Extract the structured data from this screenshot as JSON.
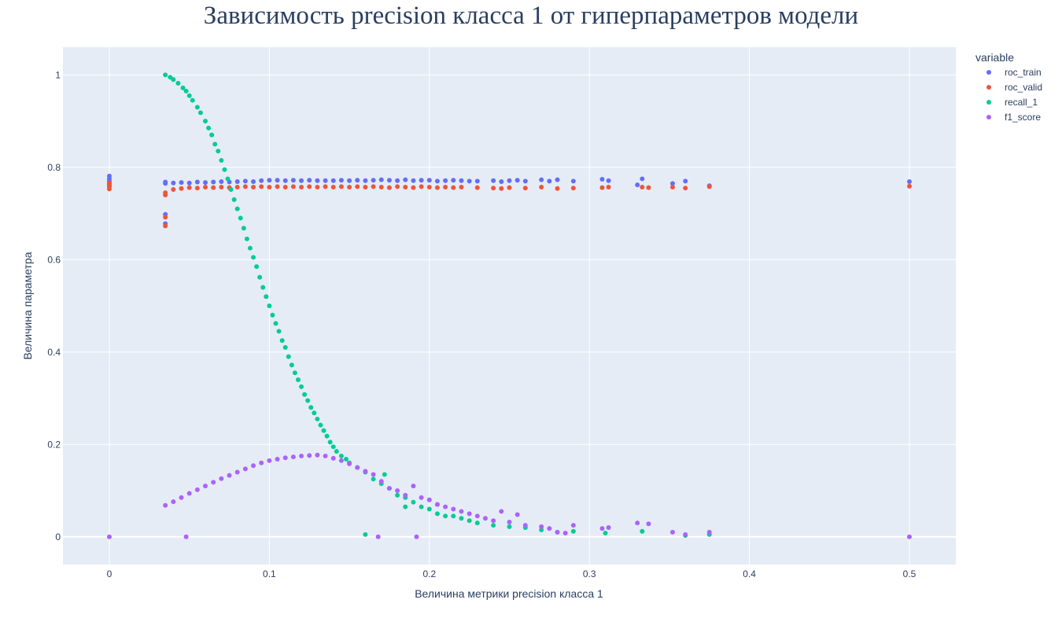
{
  "chart_data": {
    "type": "scatter",
    "title": "Зависимость precision класса 1 от гиперпараметров модели",
    "xlabel": "Величина метрики precision класса 1",
    "ylabel": "Величина параметра",
    "xlim": [
      -0.029,
      0.529
    ],
    "ylim": [
      -0.06,
      1.06
    ],
    "x_ticks": [
      0,
      0.1,
      0.2,
      0.3,
      0.4,
      0.5
    ],
    "x_tick_labels": [
      "0",
      "0.1",
      "0.2",
      "0.3",
      "0.4",
      "0.5"
    ],
    "y_ticks": [
      0,
      0.2,
      0.4,
      0.6,
      0.8,
      1
    ],
    "y_tick_labels": [
      "0",
      "0.2",
      "0.4",
      "0.6",
      "0.8",
      "1"
    ],
    "grid": true,
    "legend": {
      "title": "variable",
      "position": "top-right"
    },
    "series": [
      {
        "name": "roc_train",
        "color": "#636efa",
        "points": [
          [
            0,
            0.781
          ],
          [
            0,
            0.775
          ],
          [
            0,
            0.77
          ],
          [
            0,
            0.765
          ],
          [
            0,
            0.76
          ],
          [
            0.035,
            0.698
          ],
          [
            0.035,
            0.678
          ],
          [
            0.035,
            0.765
          ],
          [
            0.035,
            0.768
          ],
          [
            0.04,
            0.766
          ],
          [
            0.045,
            0.767
          ],
          [
            0.05,
            0.766
          ],
          [
            0.055,
            0.768
          ],
          [
            0.06,
            0.767
          ],
          [
            0.065,
            0.768
          ],
          [
            0.07,
            0.769
          ],
          [
            0.075,
            0.768
          ],
          [
            0.08,
            0.769
          ],
          [
            0.085,
            0.77
          ],
          [
            0.09,
            0.769
          ],
          [
            0.095,
            0.771
          ],
          [
            0.1,
            0.772
          ],
          [
            0.105,
            0.772
          ],
          [
            0.11,
            0.771
          ],
          [
            0.115,
            0.772
          ],
          [
            0.12,
            0.771
          ],
          [
            0.125,
            0.772
          ],
          [
            0.13,
            0.771
          ],
          [
            0.135,
            0.771
          ],
          [
            0.14,
            0.771
          ],
          [
            0.145,
            0.772
          ],
          [
            0.15,
            0.771
          ],
          [
            0.155,
            0.772
          ],
          [
            0.16,
            0.771
          ],
          [
            0.165,
            0.772
          ],
          [
            0.17,
            0.773
          ],
          [
            0.175,
            0.772
          ],
          [
            0.18,
            0.771
          ],
          [
            0.185,
            0.773
          ],
          [
            0.19,
            0.771
          ],
          [
            0.195,
            0.772
          ],
          [
            0.2,
            0.772
          ],
          [
            0.205,
            0.77
          ],
          [
            0.21,
            0.771
          ],
          [
            0.215,
            0.772
          ],
          [
            0.22,
            0.771
          ],
          [
            0.225,
            0.77
          ],
          [
            0.23,
            0.77
          ],
          [
            0.24,
            0.771
          ],
          [
            0.245,
            0.769
          ],
          [
            0.25,
            0.771
          ],
          [
            0.255,
            0.772
          ],
          [
            0.26,
            0.77
          ],
          [
            0.27,
            0.773
          ],
          [
            0.275,
            0.77
          ],
          [
            0.28,
            0.773
          ],
          [
            0.29,
            0.77
          ],
          [
            0.308,
            0.774
          ],
          [
            0.312,
            0.771
          ],
          [
            0.33,
            0.762
          ],
          [
            0.333,
            0.775
          ],
          [
            0.352,
            0.765
          ],
          [
            0.36,
            0.77
          ],
          [
            0.375,
            0.76
          ],
          [
            0.5,
            0.769
          ]
        ]
      },
      {
        "name": "roc_valid",
        "color": "#ef553b",
        "points": [
          [
            0,
            0.753
          ],
          [
            0,
            0.758
          ],
          [
            0,
            0.762
          ],
          [
            0,
            0.766
          ],
          [
            0.035,
            0.74
          ],
          [
            0.035,
            0.745
          ],
          [
            0.035,
            0.692
          ],
          [
            0.035,
            0.673
          ],
          [
            0.04,
            0.752
          ],
          [
            0.045,
            0.754
          ],
          [
            0.05,
            0.756
          ],
          [
            0.055,
            0.755
          ],
          [
            0.06,
            0.757
          ],
          [
            0.065,
            0.756
          ],
          [
            0.07,
            0.757
          ],
          [
            0.075,
            0.756
          ],
          [
            0.08,
            0.757
          ],
          [
            0.085,
            0.758
          ],
          [
            0.09,
            0.757
          ],
          [
            0.095,
            0.758
          ],
          [
            0.1,
            0.757
          ],
          [
            0.105,
            0.758
          ],
          [
            0.11,
            0.757
          ],
          [
            0.115,
            0.758
          ],
          [
            0.12,
            0.757
          ],
          [
            0.125,
            0.758
          ],
          [
            0.13,
            0.757
          ],
          [
            0.135,
            0.758
          ],
          [
            0.14,
            0.757
          ],
          [
            0.145,
            0.758
          ],
          [
            0.15,
            0.757
          ],
          [
            0.155,
            0.758
          ],
          [
            0.16,
            0.757
          ],
          [
            0.165,
            0.758
          ],
          [
            0.17,
            0.757
          ],
          [
            0.175,
            0.756
          ],
          [
            0.18,
            0.758
          ],
          [
            0.185,
            0.757
          ],
          [
            0.19,
            0.756
          ],
          [
            0.195,
            0.758
          ],
          [
            0.2,
            0.757
          ],
          [
            0.205,
            0.756
          ],
          [
            0.21,
            0.757
          ],
          [
            0.215,
            0.756
          ],
          [
            0.22,
            0.757
          ],
          [
            0.23,
            0.756
          ],
          [
            0.24,
            0.755
          ],
          [
            0.245,
            0.754
          ],
          [
            0.25,
            0.756
          ],
          [
            0.26,
            0.755
          ],
          [
            0.27,
            0.757
          ],
          [
            0.28,
            0.754
          ],
          [
            0.29,
            0.755
          ],
          [
            0.308,
            0.756
          ],
          [
            0.312,
            0.757
          ],
          [
            0.333,
            0.757
          ],
          [
            0.337,
            0.756
          ],
          [
            0.352,
            0.757
          ],
          [
            0.36,
            0.755
          ],
          [
            0.375,
            0.758
          ],
          [
            0.5,
            0.759
          ]
        ]
      },
      {
        "name": "recall_1",
        "color": "#00cc96",
        "points": [
          [
            0.035,
            1.0
          ],
          [
            0.038,
            0.995
          ],
          [
            0.04,
            0.99
          ],
          [
            0.043,
            0.982
          ],
          [
            0.046,
            0.972
          ],
          [
            0.048,
            0.965
          ],
          [
            0.05,
            0.955
          ],
          [
            0.052,
            0.945
          ],
          [
            0.055,
            0.93
          ],
          [
            0.057,
            0.918
          ],
          [
            0.06,
            0.9
          ],
          [
            0.062,
            0.885
          ],
          [
            0.064,
            0.87
          ],
          [
            0.066,
            0.85
          ],
          [
            0.068,
            0.835
          ],
          [
            0.07,
            0.815
          ],
          [
            0.072,
            0.795
          ],
          [
            0.074,
            0.775
          ],
          [
            0.076,
            0.752
          ],
          [
            0.078,
            0.73
          ],
          [
            0.08,
            0.71
          ],
          [
            0.082,
            0.69
          ],
          [
            0.084,
            0.668
          ],
          [
            0.086,
            0.645
          ],
          [
            0.088,
            0.625
          ],
          [
            0.09,
            0.605
          ],
          [
            0.092,
            0.585
          ],
          [
            0.094,
            0.562
          ],
          [
            0.096,
            0.54
          ],
          [
            0.098,
            0.52
          ],
          [
            0.1,
            0.5
          ],
          [
            0.102,
            0.48
          ],
          [
            0.104,
            0.462
          ],
          [
            0.106,
            0.445
          ],
          [
            0.108,
            0.425
          ],
          [
            0.11,
            0.41
          ],
          [
            0.112,
            0.39
          ],
          [
            0.114,
            0.372
          ],
          [
            0.116,
            0.355
          ],
          [
            0.118,
            0.34
          ],
          [
            0.12,
            0.325
          ],
          [
            0.122,
            0.308
          ],
          [
            0.124,
            0.295
          ],
          [
            0.126,
            0.28
          ],
          [
            0.128,
            0.268
          ],
          [
            0.13,
            0.255
          ],
          [
            0.132,
            0.242
          ],
          [
            0.134,
            0.23
          ],
          [
            0.136,
            0.218
          ],
          [
            0.138,
            0.205
          ],
          [
            0.14,
            0.195
          ],
          [
            0.142,
            0.185
          ],
          [
            0.145,
            0.175
          ],
          [
            0.148,
            0.168
          ],
          [
            0.15,
            0.16
          ],
          [
            0.155,
            0.15
          ],
          [
            0.16,
            0.14
          ],
          [
            0.165,
            0.125
          ],
          [
            0.17,
            0.115
          ],
          [
            0.175,
            0.105
          ],
          [
            0.18,
            0.09
          ],
          [
            0.185,
            0.085
          ],
          [
            0.19,
            0.075
          ],
          [
            0.195,
            0.065
          ],
          [
            0.2,
            0.06
          ],
          [
            0.205,
            0.05
          ],
          [
            0.21,
            0.045
          ],
          [
            0.215,
            0.045
          ],
          [
            0.22,
            0.04
          ],
          [
            0.225,
            0.035
          ],
          [
            0.23,
            0.03
          ],
          [
            0.24,
            0.025
          ],
          [
            0.25,
            0.022
          ],
          [
            0.26,
            0.02
          ],
          [
            0.27,
            0.015
          ],
          [
            0.28,
            0.01
          ],
          [
            0.29,
            0.012
          ],
          [
            0.31,
            0.008
          ],
          [
            0.333,
            0.012
          ],
          [
            0.36,
            0.003
          ],
          [
            0.375,
            0.005
          ],
          [
            0.16,
            0.005
          ],
          [
            0.185,
            0.065
          ],
          [
            0.205,
            0.07
          ],
          [
            0.172,
            0.135
          ]
        ]
      },
      {
        "name": "f1_score",
        "color": "#ab63fa",
        "points": [
          [
            0,
            0.0
          ],
          [
            0.048,
            0.0
          ],
          [
            0.035,
            0.068
          ],
          [
            0.04,
            0.076
          ],
          [
            0.045,
            0.085
          ],
          [
            0.05,
            0.094
          ],
          [
            0.055,
            0.102
          ],
          [
            0.06,
            0.11
          ],
          [
            0.065,
            0.118
          ],
          [
            0.07,
            0.126
          ],
          [
            0.075,
            0.133
          ],
          [
            0.08,
            0.14
          ],
          [
            0.085,
            0.147
          ],
          [
            0.09,
            0.154
          ],
          [
            0.095,
            0.16
          ],
          [
            0.1,
            0.165
          ],
          [
            0.105,
            0.168
          ],
          [
            0.11,
            0.171
          ],
          [
            0.115,
            0.173
          ],
          [
            0.12,
            0.175
          ],
          [
            0.125,
            0.176
          ],
          [
            0.13,
            0.177
          ],
          [
            0.135,
            0.175
          ],
          [
            0.14,
            0.17
          ],
          [
            0.145,
            0.165
          ],
          [
            0.15,
            0.158
          ],
          [
            0.155,
            0.15
          ],
          [
            0.16,
            0.142
          ],
          [
            0.165,
            0.135
          ],
          [
            0.17,
            0.12
          ],
          [
            0.175,
            0.105
          ],
          [
            0.18,
            0.1
          ],
          [
            0.185,
            0.09
          ],
          [
            0.19,
            0.11
          ],
          [
            0.195,
            0.085
          ],
          [
            0.2,
            0.08
          ],
          [
            0.205,
            0.07
          ],
          [
            0.21,
            0.065
          ],
          [
            0.215,
            0.06
          ],
          [
            0.22,
            0.055
          ],
          [
            0.225,
            0.05
          ],
          [
            0.23,
            0.045
          ],
          [
            0.235,
            0.04
          ],
          [
            0.24,
            0.035
          ],
          [
            0.245,
            0.055
          ],
          [
            0.25,
            0.032
          ],
          [
            0.255,
            0.048
          ],
          [
            0.26,
            0.025
          ],
          [
            0.27,
            0.022
          ],
          [
            0.275,
            0.018
          ],
          [
            0.28,
            0.01
          ],
          [
            0.285,
            0.008
          ],
          [
            0.29,
            0.025
          ],
          [
            0.308,
            0.018
          ],
          [
            0.312,
            0.02
          ],
          [
            0.33,
            0.03
          ],
          [
            0.337,
            0.028
          ],
          [
            0.352,
            0.01
          ],
          [
            0.36,
            0.005
          ],
          [
            0.375,
            0.01
          ],
          [
            0.5,
            0.0
          ],
          [
            0.168,
            0.0
          ],
          [
            0.192,
            0.0
          ]
        ]
      }
    ]
  }
}
